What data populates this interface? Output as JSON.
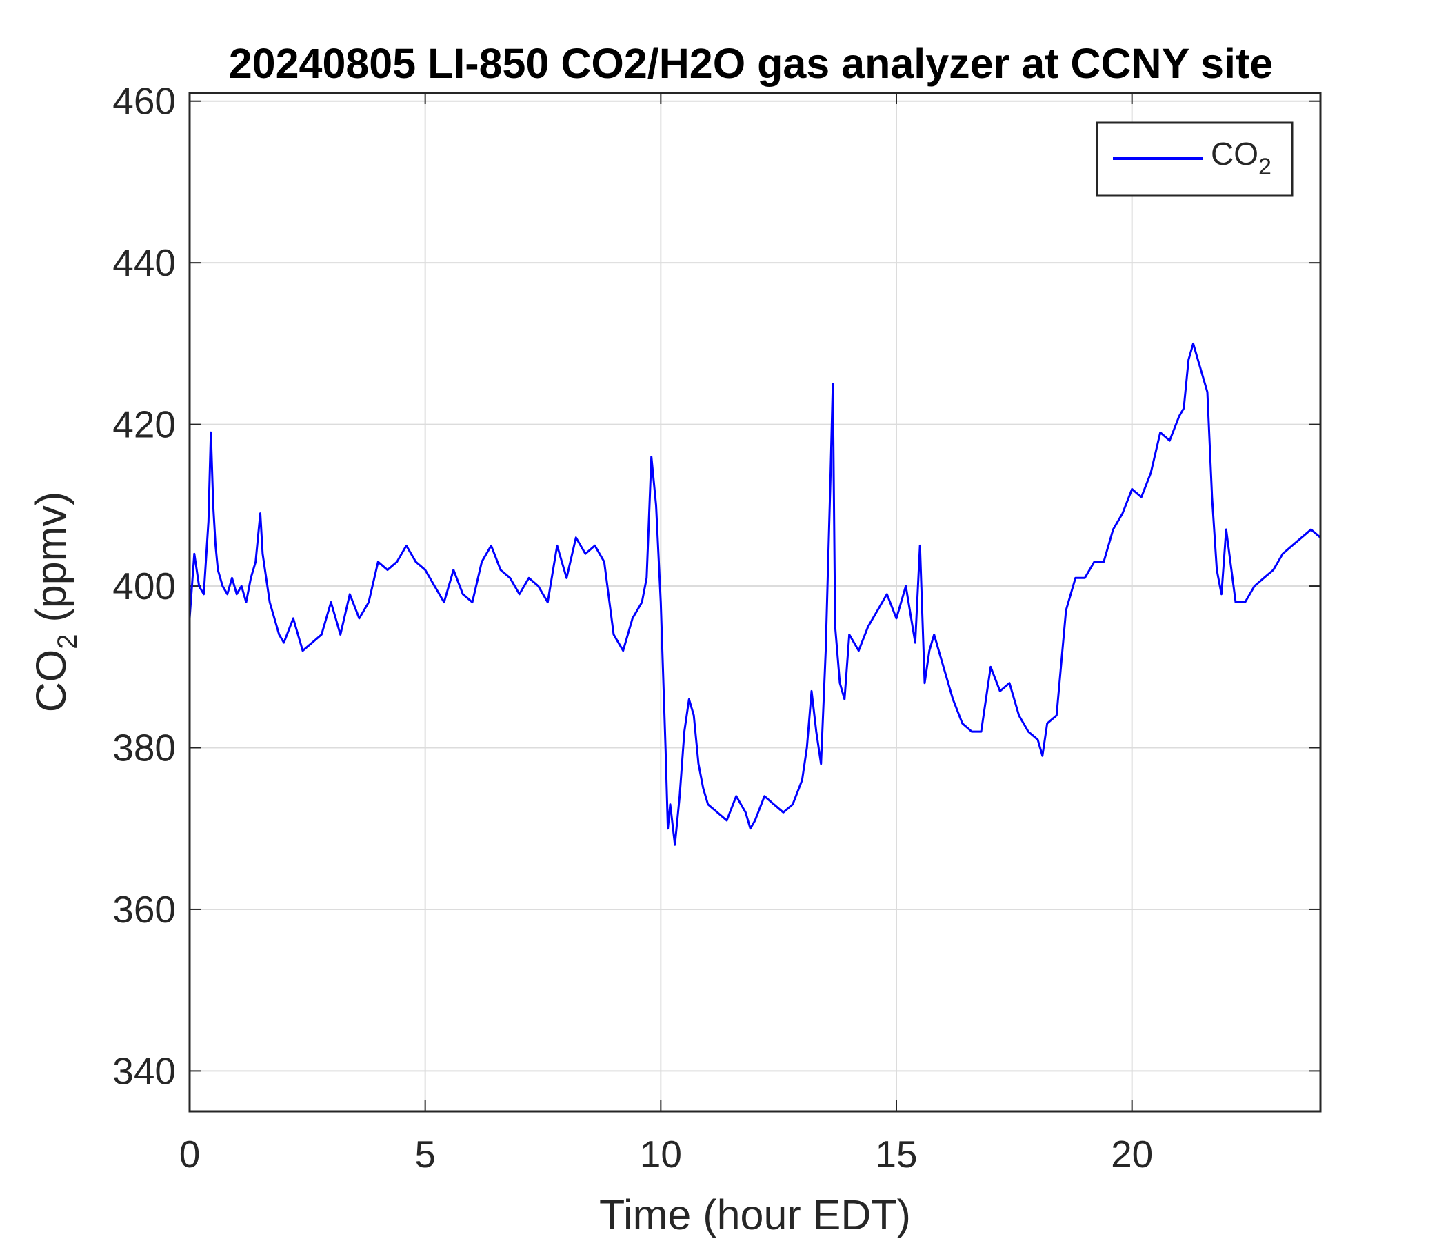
{
  "chart_data": {
    "type": "line",
    "title": "20240805 LI-850 CO2/H2O gas analyzer at CCNY site",
    "xlabel": "Time (hour EDT)",
    "ylabel": {
      "main": "CO",
      "sub": "2",
      "rest": " (ppmv)"
    },
    "xlim": [
      0,
      24
    ],
    "ylim": [
      335,
      461
    ],
    "xticks": [
      0,
      5,
      10,
      15,
      20
    ],
    "yticks": [
      340,
      360,
      380,
      400,
      420,
      440,
      460
    ],
    "grid": true,
    "legend": {
      "position": "top-right",
      "main": "CO",
      "sub": "2"
    },
    "series": [
      {
        "name": "CO2",
        "color": "#0000ff",
        "x": [
          0,
          0.1,
          0.2,
          0.3,
          0.4,
          0.45,
          0.5,
          0.55,
          0.6,
          0.7,
          0.8,
          0.9,
          1.0,
          1.1,
          1.2,
          1.3,
          1.4,
          1.5,
          1.55,
          1.6,
          1.7,
          1.8,
          1.9,
          2.0,
          2.2,
          2.4,
          2.6,
          2.8,
          3.0,
          3.2,
          3.4,
          3.6,
          3.8,
          4.0,
          4.2,
          4.4,
          4.6,
          4.8,
          5.0,
          5.2,
          5.4,
          5.6,
          5.8,
          6.0,
          6.2,
          6.4,
          6.6,
          6.8,
          7.0,
          7.2,
          7.4,
          7.6,
          7.8,
          8.0,
          8.2,
          8.4,
          8.6,
          8.8,
          9.0,
          9.2,
          9.4,
          9.6,
          9.7,
          9.8,
          9.9,
          10.0,
          10.1,
          10.15,
          10.2,
          10.3,
          10.4,
          10.5,
          10.6,
          10.7,
          10.8,
          10.9,
          11.0,
          11.2,
          11.4,
          11.6,
          11.8,
          11.9,
          12.0,
          12.2,
          12.4,
          12.6,
          12.8,
          13.0,
          13.1,
          13.2,
          13.3,
          13.4,
          13.5,
          13.6,
          13.65,
          13.7,
          13.8,
          13.9,
          14.0,
          14.2,
          14.4,
          14.6,
          14.8,
          15.0,
          15.2,
          15.4,
          15.5,
          15.6,
          15.7,
          15.8,
          16.0,
          16.2,
          16.4,
          16.6,
          16.8,
          17.0,
          17.2,
          17.4,
          17.6,
          17.8,
          18.0,
          18.1,
          18.2,
          18.4,
          18.6,
          18.8,
          19.0,
          19.2,
          19.4,
          19.6,
          19.8,
          20.0,
          20.2,
          20.4,
          20.6,
          20.8,
          21.0,
          21.1,
          21.2,
          21.3,
          21.4,
          21.5,
          21.6,
          21.7,
          21.8,
          21.9,
          22.0,
          22.2,
          22.4,
          22.6,
          22.8,
          23.0,
          23.2,
          23.4,
          23.6,
          23.8,
          24.0
        ],
        "y": [
          396,
          404,
          400,
          399,
          408,
          419,
          410,
          405,
          402,
          400,
          399,
          401,
          399,
          400,
          398,
          401,
          403,
          409,
          404,
          402,
          398,
          396,
          394,
          393,
          396,
          392,
          393,
          394,
          398,
          394,
          399,
          396,
          398,
          403,
          402,
          403,
          405,
          403,
          402,
          400,
          398,
          402,
          399,
          398,
          403,
          405,
          402,
          401,
          399,
          401,
          400,
          398,
          405,
          401,
          406,
          404,
          405,
          403,
          394,
          392,
          396,
          398,
          401,
          416,
          410,
          398,
          380,
          370,
          373,
          368,
          374,
          382,
          386,
          384,
          378,
          375,
          373,
          372,
          371,
          374,
          372,
          370,
          371,
          374,
          373,
          372,
          373,
          376,
          380,
          387,
          382,
          378,
          392,
          413,
          425,
          395,
          388,
          386,
          394,
          392,
          395,
          397,
          399,
          396,
          400,
          393,
          405,
          388,
          392,
          394,
          390,
          386,
          383,
          382,
          382,
          390,
          387,
          388,
          384,
          382,
          381,
          379,
          383,
          384,
          397,
          401,
          401,
          403,
          403,
          407,
          409,
          412,
          411,
          414,
          419,
          418,
          421,
          422,
          428,
          430,
          428,
          426,
          424,
          411,
          402,
          399,
          407,
          398,
          398,
          400,
          401,
          402,
          404,
          405,
          406,
          407,
          406
        ]
      }
    ]
  }
}
